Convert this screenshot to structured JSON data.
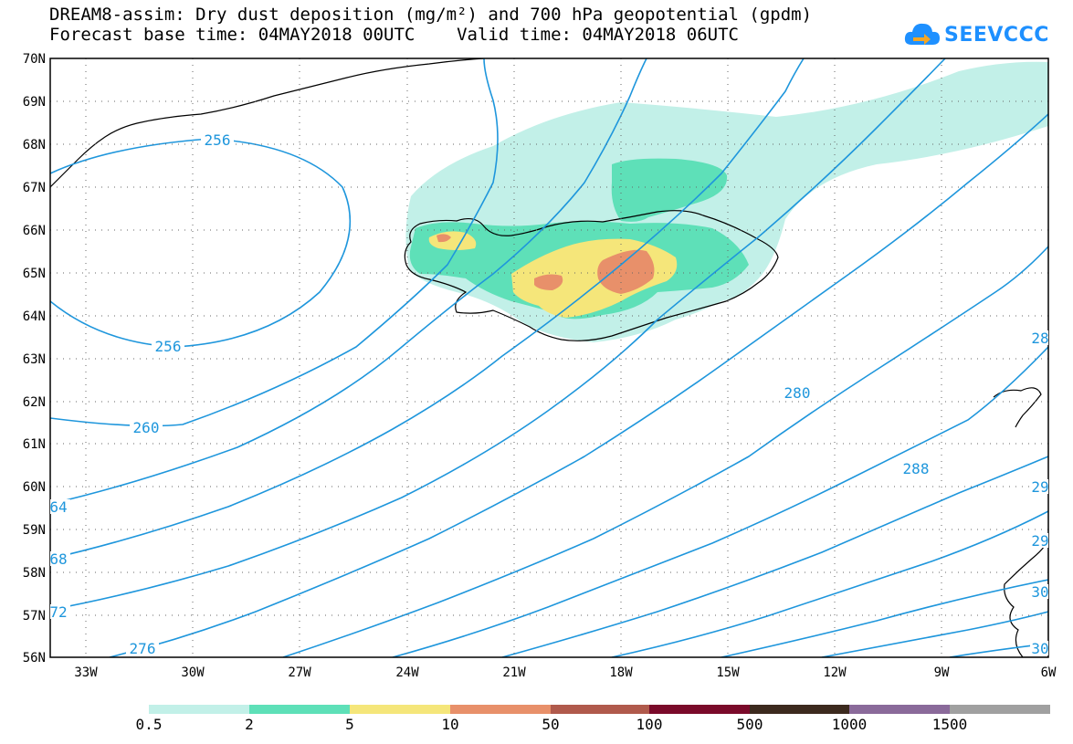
{
  "title": {
    "line1": "DREAM8-assim: Dry dust deposition (mg/m²) and 700 hPa geopotential (gpdm)",
    "line2": "Forecast base time: 04MAY2018 00UTC    Valid time: 04MAY2018 06UTC"
  },
  "logo": {
    "text": "SEEVCCC",
    "icon": "cloud-arrow-icon"
  },
  "map": {
    "lat_labels": [
      "70N",
      "69N",
      "68N",
      "67N",
      "66N",
      "65N",
      "64N",
      "63N",
      "62N",
      "61N",
      "60N",
      "59N",
      "58N",
      "57N",
      "56N"
    ],
    "lon_labels": [
      "33W",
      "30W",
      "27W",
      "24W",
      "21W",
      "18W",
      "15W",
      "12W",
      "9W",
      "6W"
    ],
    "contour_labels": [
      "256",
      "256",
      "260",
      "64",
      "68",
      "72",
      "276",
      "280",
      "288",
      "28",
      "29",
      "29",
      "30",
      "30"
    ],
    "land_color": "#ffffff",
    "contour_color": "#1e96dc"
  },
  "colorbar": {
    "labels": [
      "0.5",
      "2",
      "5",
      "10",
      "50",
      "100",
      "500",
      "1000",
      "1500"
    ],
    "colors": [
      "#c2f0e8",
      "#5ee0b8",
      "#f5e67a",
      "#e8906a",
      "#b05a4c",
      "#7a0a2a",
      "#3c2a1e",
      "#8a6a9a",
      "#a0a0a0"
    ]
  }
}
